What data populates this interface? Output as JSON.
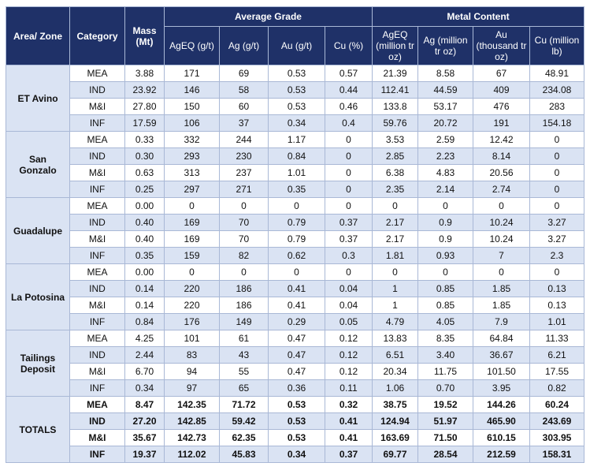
{
  "table": {
    "header": {
      "area": "Area/ Zone",
      "category": "Category",
      "mass": "Mass (Mt)",
      "grade_group": "Average Grade",
      "metal_group": "Metal Content",
      "columns": [
        "AgEQ (g/t)",
        "Ag (g/t)",
        "Au (g/t)",
        "Cu (%)",
        "AgEQ (million tr oz)",
        "Ag (million tr oz)",
        "Au (thousand tr oz)",
        "Cu (million lb)"
      ]
    },
    "groups": [
      {
        "area": "ET Avino",
        "rows": [
          {
            "category": "MEA",
            "values": [
              "3.88",
              "171",
              "69",
              "0.53",
              "0.57",
              "21.39",
              "8.58",
              "67",
              "48.91"
            ]
          },
          {
            "category": "IND",
            "values": [
              "23.92",
              "146",
              "58",
              "0.53",
              "0.44",
              "112.41",
              "44.59",
              "409",
              "234.08"
            ]
          },
          {
            "category": "M&I",
            "values": [
              "27.80",
              "150",
              "60",
              "0.53",
              "0.46",
              "133.8",
              "53.17",
              "476",
              "283"
            ]
          },
          {
            "category": "INF",
            "values": [
              "17.59",
              "106",
              "37",
              "0.34",
              "0.4",
              "59.76",
              "20.72",
              "191",
              "154.18"
            ]
          }
        ]
      },
      {
        "area": "San Gonzalo",
        "rows": [
          {
            "category": "MEA",
            "values": [
              "0.33",
              "332",
              "244",
              "1.17",
              "0",
              "3.53",
              "2.59",
              "12.42",
              "0"
            ]
          },
          {
            "category": "IND",
            "values": [
              "0.30",
              "293",
              "230",
              "0.84",
              "0",
              "2.85",
              "2.23",
              "8.14",
              "0"
            ]
          },
          {
            "category": "M&I",
            "values": [
              "0.63",
              "313",
              "237",
              "1.01",
              "0",
              "6.38",
              "4.83",
              "20.56",
              "0"
            ]
          },
          {
            "category": "INF",
            "values": [
              "0.25",
              "297",
              "271",
              "0.35",
              "0",
              "2.35",
              "2.14",
              "2.74",
              "0"
            ]
          }
        ]
      },
      {
        "area": "Guadalupe",
        "rows": [
          {
            "category": "MEA",
            "values": [
              "0.00",
              "0",
              "0",
              "0",
              "0",
              "0",
              "0",
              "0",
              "0"
            ]
          },
          {
            "category": "IND",
            "values": [
              "0.40",
              "169",
              "70",
              "0.79",
              "0.37",
              "2.17",
              "0.9",
              "10.24",
              "3.27"
            ]
          },
          {
            "category": "M&I",
            "values": [
              "0.40",
              "169",
              "70",
              "0.79",
              "0.37",
              "2.17",
              "0.9",
              "10.24",
              "3.27"
            ]
          },
          {
            "category": "INF",
            "values": [
              "0.35",
              "159",
              "82",
              "0.62",
              "0.3",
              "1.81",
              "0.93",
              "7",
              "2.3"
            ]
          }
        ]
      },
      {
        "area": "La Potosina",
        "rows": [
          {
            "category": "MEA",
            "values": [
              "0.00",
              "0",
              "0",
              "0",
              "0",
              "0",
              "0",
              "0",
              "0"
            ]
          },
          {
            "category": "IND",
            "values": [
              "0.14",
              "220",
              "186",
              "0.41",
              "0.04",
              "1",
              "0.85",
              "1.85",
              "0.13"
            ]
          },
          {
            "category": "M&I",
            "values": [
              "0.14",
              "220",
              "186",
              "0.41",
              "0.04",
              "1",
              "0.85",
              "1.85",
              "0.13"
            ]
          },
          {
            "category": "INF",
            "values": [
              "0.84",
              "176",
              "149",
              "0.29",
              "0.05",
              "4.79",
              "4.05",
              "7.9",
              "1.01"
            ]
          }
        ]
      },
      {
        "area": "Tailings Deposit",
        "rows": [
          {
            "category": "MEA",
            "values": [
              "4.25",
              "101",
              "61",
              "0.47",
              "0.12",
              "13.83",
              "8.35",
              "64.84",
              "11.33"
            ]
          },
          {
            "category": "IND",
            "values": [
              "2.44",
              "83",
              "43",
              "0.47",
              "0.12",
              "6.51",
              "3.40",
              "36.67",
              "6.21"
            ]
          },
          {
            "category": "M&I",
            "values": [
              "6.70",
              "94",
              "55",
              "0.47",
              "0.12",
              "20.34",
              "11.75",
              "101.50",
              "17.55"
            ]
          },
          {
            "category": "INF",
            "values": [
              "0.34",
              "97",
              "65",
              "0.36",
              "0.11",
              "1.06",
              "0.70",
              "3.95",
              "0.82"
            ]
          }
        ]
      },
      {
        "area": "TOTALS",
        "rows": [
          {
            "category": "MEA",
            "values": [
              "8.47",
              "142.35",
              "71.72",
              "0.53",
              "0.32",
              "38.75",
              "19.52",
              "144.26",
              "60.24"
            ]
          },
          {
            "category": "IND",
            "values": [
              "27.20",
              "142.85",
              "59.42",
              "0.53",
              "0.41",
              "124.94",
              "51.97",
              "465.90",
              "243.69"
            ]
          },
          {
            "category": "M&I",
            "values": [
              "35.67",
              "142.73",
              "62.35",
              "0.53",
              "0.41",
              "163.69",
              "71.50",
              "610.15",
              "303.95"
            ]
          },
          {
            "category": "INF",
            "values": [
              "19.37",
              "112.02",
              "45.83",
              "0.34",
              "0.37",
              "69.77",
              "28.54",
              "212.59",
              "158.31"
            ]
          }
        ]
      }
    ]
  }
}
